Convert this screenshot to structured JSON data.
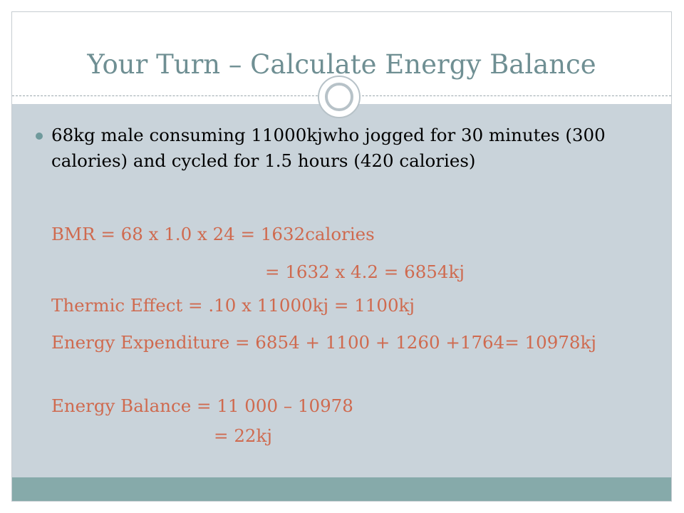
{
  "slide": {
    "title": "Your Turn – Calculate Energy Balance",
    "bullet": "68kg male consuming 11000kjwho jogged for 30 minutes (300 calories) and cycled for 1.5 hours (420 calories)",
    "calculations": {
      "bmr_line1": "BMR = 68 x 1.0 x 24 = 1632calories",
      "bmr_line2": "= 1632 x 4.2 = 6854kj",
      "thermic": "Thermic Effect = .10 x 11000kj = 1100kj",
      "expenditure": "Energy Expenditure = 6854 + 1100 + 1260 +1764= 10978kj",
      "balance_line1": "Energy Balance = 11 000 – 10978",
      "balance_line2": "= 22kj"
    }
  },
  "colors": {
    "title": "#6f8f93",
    "content_background": "#c9d3da",
    "footer_bar": "#86aaaa",
    "calculation_text": "#cf6a4f",
    "bullet_text": "#000000"
  }
}
